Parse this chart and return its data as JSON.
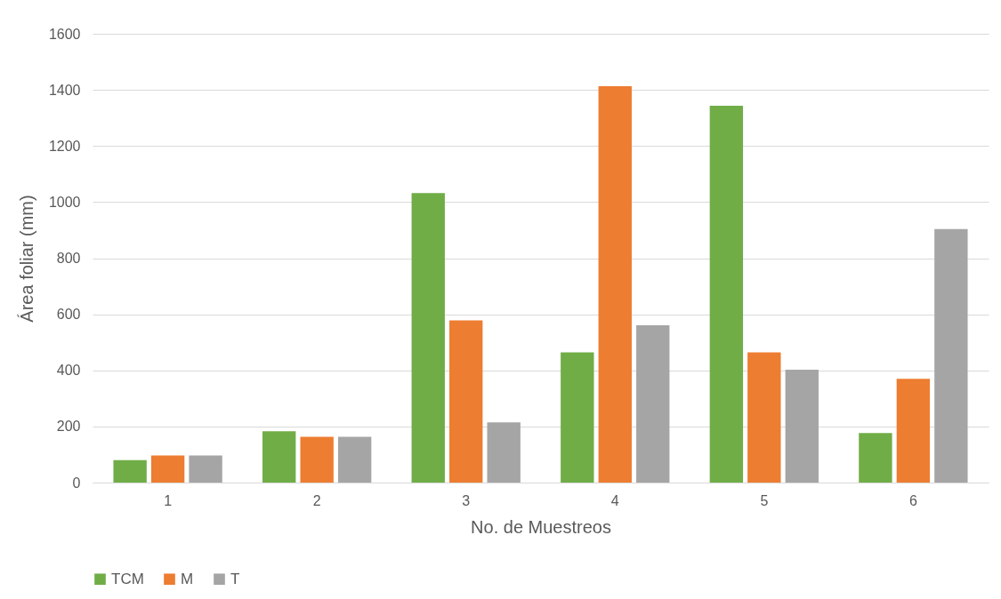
{
  "chart_data": {
    "type": "bar",
    "xlabel": "No. de Muestreos",
    "ylabel": "Área foliar (mm)",
    "categories": [
      "1",
      "2",
      "3",
      "4",
      "5",
      "6"
    ],
    "series": [
      {
        "name": "TCM",
        "color": "#70ad47",
        "values": [
          80,
          183,
          1032,
          464,
          1343,
          177
        ]
      },
      {
        "name": "M",
        "color": "#ed7d31",
        "values": [
          97,
          163,
          578,
          1413,
          464,
          370
        ]
      },
      {
        "name": "T",
        "color": "#a5a5a5",
        "values": [
          97,
          163,
          215,
          561,
          402,
          904
        ]
      }
    ],
    "ylim": [
      0,
      1600
    ],
    "yticks": [
      0,
      200,
      400,
      600,
      800,
      1000,
      1200,
      1400,
      1600
    ],
    "grid": "y",
    "legend": "bottom"
  }
}
